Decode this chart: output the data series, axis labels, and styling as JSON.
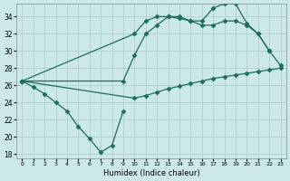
{
  "background_color": "#cce8e8",
  "grid_color": "#aacccc",
  "line_color": "#1a6e60",
  "xlabel": "Humidex (Indice chaleur)",
  "xlim": [
    -0.5,
    23.5
  ],
  "ylim": [
    17.5,
    35.5
  ],
  "yticks": [
    18,
    20,
    22,
    24,
    26,
    28,
    30,
    32,
    34
  ],
  "xticks": [
    0,
    1,
    2,
    3,
    4,
    5,
    6,
    7,
    8,
    9,
    10,
    11,
    12,
    13,
    14,
    15,
    16,
    17,
    18,
    19,
    20,
    21,
    22,
    23
  ],
  "line_dip_x": [
    0,
    1,
    2,
    3,
    4,
    5,
    6,
    7,
    8,
    9
  ],
  "line_dip_y": [
    26.5,
    25.8,
    25.0,
    24.0,
    23.0,
    21.2,
    19.8,
    18.2,
    19.0,
    23.0
  ],
  "line_upper_x": [
    0,
    10,
    11,
    12,
    13,
    14,
    15,
    16,
    17,
    18,
    19,
    20,
    21,
    22
  ],
  "line_upper_y": [
    26.5,
    32.0,
    33.5,
    34.0,
    34.0,
    33.8,
    33.5,
    33.5,
    35.0,
    35.5,
    35.5,
    33.2,
    32.0,
    30.0
  ],
  "line_mid_x": [
    0,
    9,
    10,
    11,
    12,
    13,
    14,
    15,
    16,
    17,
    18,
    19,
    20,
    21,
    22,
    23
  ],
  "line_mid_y": [
    26.5,
    26.5,
    29.5,
    32.0,
    33.0,
    34.0,
    34.0,
    33.5,
    33.0,
    33.0,
    33.5,
    33.5,
    33.0,
    32.0,
    30.0,
    28.3
  ],
  "line_low_x": [
    0,
    10,
    11,
    12,
    13,
    14,
    15,
    16,
    17,
    18,
    19,
    20,
    21,
    22,
    23
  ],
  "line_low_y": [
    26.5,
    24.5,
    24.8,
    25.2,
    25.6,
    25.9,
    26.2,
    26.5,
    26.8,
    27.0,
    27.2,
    27.4,
    27.6,
    27.8,
    28.0
  ]
}
